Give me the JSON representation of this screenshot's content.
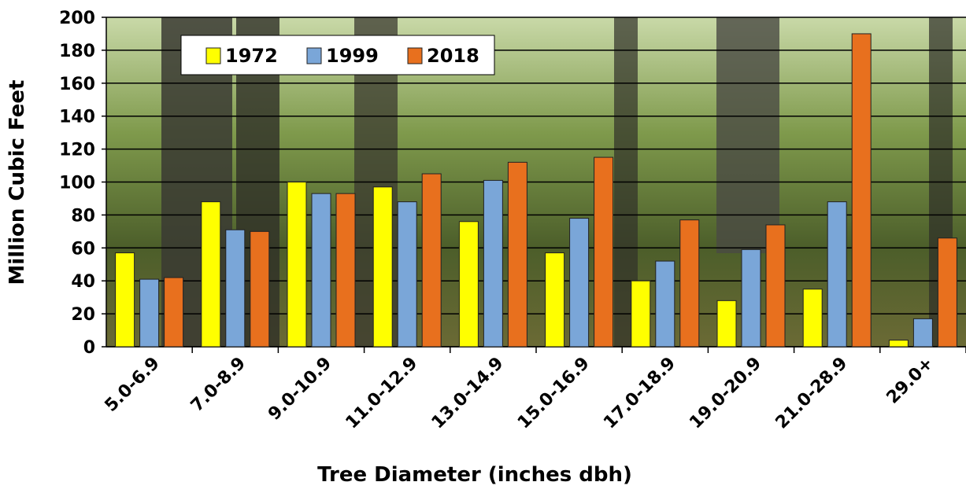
{
  "chart_data": {
    "type": "bar",
    "x_label": "Tree Diameter (inches dbh)",
    "y_label": "Million Cubic Feet",
    "categories": [
      "5.0-6.9",
      "7.0-8.9",
      "9.0-10.9",
      "11.0-12.9",
      "13.0-14.9",
      "15.0-16.9",
      "17.0-18.9",
      "19.0-20.9",
      "21.0-28.9",
      "29.0+"
    ],
    "series": [
      {
        "name": "1972",
        "color": "#ffff00",
        "values": [
          57,
          88,
          100,
          97,
          76,
          57,
          40,
          28,
          35,
          4
        ]
      },
      {
        "name": "1999",
        "color": "#7aa6d8",
        "values": [
          41,
          71,
          93,
          88,
          101,
          78,
          52,
          59,
          88,
          17
        ]
      },
      {
        "name": "2018",
        "color": "#e8701e",
        "values": [
          42,
          70,
          93,
          105,
          112,
          115,
          77,
          74,
          190,
          66
        ]
      }
    ],
    "ylim": [
      0,
      200
    ],
    "yticks": [
      0,
      20,
      40,
      60,
      80,
      100,
      120,
      140,
      160,
      180,
      200
    ],
    "grid": true,
    "legend": "top-left"
  }
}
